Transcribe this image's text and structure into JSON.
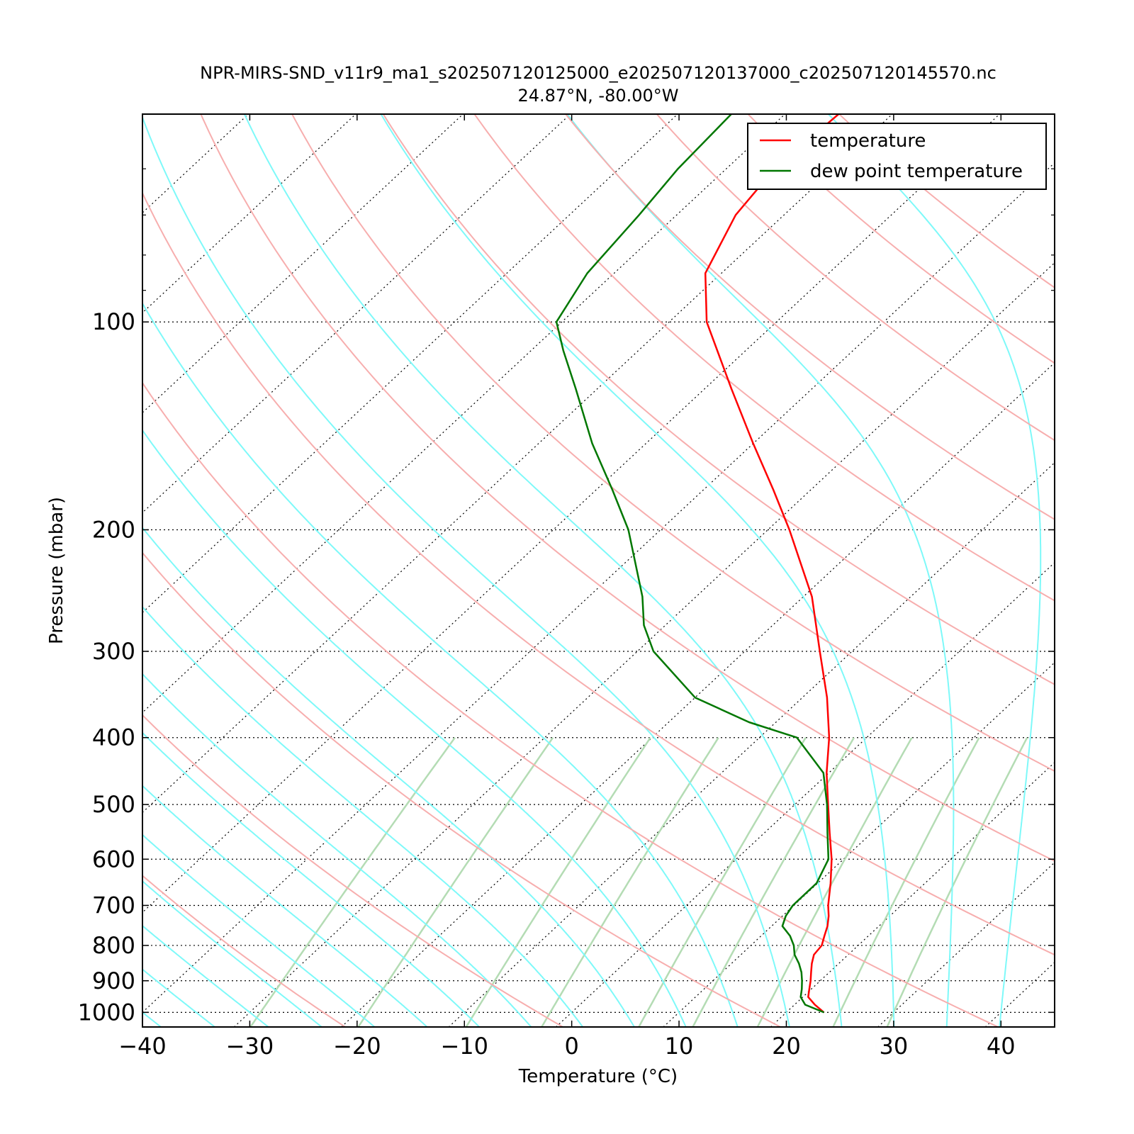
{
  "title": "NPR-MIRS-SND_v11r9_ma1_s202507120125000_e202507120137000_c202507120145570.nc",
  "subtitle": "24.87°N, -80.00°W",
  "colors": {
    "temperature": "#ff0000",
    "dewpoint": "#007700",
    "dry_adiabat": "#f7aeae",
    "moist_adiabat": "#7ef9f9",
    "mixing_ratio": "#b4dcb4",
    "isotherm_grid": "#000000"
  },
  "chart_data": {
    "type": "line",
    "title": "NPR-MIRS-SND_v11r9_ma1_s202507120125000_e202507120137000_c202507120145570.nc",
    "subtitle": "24.87°N, -80.00°W",
    "xlabel": "Temperature (°C)",
    "ylabel": "Pressure (mbar)",
    "xlim": [
      -40,
      45
    ],
    "ylim": [
      1050,
      50
    ],
    "y_scale": "log",
    "x_ticks": [
      "−40",
      "−30",
      "−20",
      "−10",
      "0",
      "10",
      "20",
      "30",
      "40"
    ],
    "x_tick_values": [
      -40,
      -30,
      -20,
      -10,
      0,
      10,
      20,
      30,
      40
    ],
    "y_ticks": [
      "100",
      "200",
      "300",
      "400",
      "500",
      "600",
      "700",
      "800",
      "900",
      "1000"
    ],
    "y_tick_values": [
      100,
      200,
      300,
      400,
      500,
      600,
      700,
      800,
      900,
      1000
    ],
    "grid": "dotted isobars and skewed isotherms",
    "legend_position": "top-right",
    "legend": [
      "temperature",
      "dew point temperature"
    ],
    "series": [
      {
        "name": "temperature",
        "color": "#ff0000",
        "points": [
          [
            1000,
            23.5
          ],
          [
            975,
            21.9
          ],
          [
            950,
            20.5
          ],
          [
            925,
            19.8
          ],
          [
            900,
            19.1
          ],
          [
            875,
            18.3
          ],
          [
            850,
            17.5
          ],
          [
            825,
            16.8
          ],
          [
            800,
            16.6
          ],
          [
            775,
            15.9
          ],
          [
            750,
            15.2
          ],
          [
            725,
            14.3
          ],
          [
            700,
            13.2
          ],
          [
            650,
            11.2
          ],
          [
            600,
            8.9
          ],
          [
            550,
            6.1
          ],
          [
            500,
            3.1
          ],
          [
            450,
            -0.2
          ],
          [
            400,
            -3.5
          ],
          [
            350,
            -7.7
          ],
          [
            300,
            -13.0
          ],
          [
            250,
            -19.2
          ],
          [
            200,
            -28.0
          ],
          [
            175,
            -33.5
          ],
          [
            150,
            -40.0
          ],
          [
            125,
            -47.5
          ],
          [
            100,
            -56.5
          ],
          [
            85,
            -61.5
          ],
          [
            70,
            -64.5
          ],
          [
            60,
            -65.5
          ],
          [
            50,
            -65.0
          ]
        ]
      },
      {
        "name": "dew point temperature",
        "color": "#007700",
        "points": [
          [
            1000,
            23.5
          ],
          [
            975,
            21.0
          ],
          [
            950,
            19.8
          ],
          [
            925,
            19.1
          ],
          [
            900,
            18.3
          ],
          [
            875,
            17.4
          ],
          [
            850,
            16.3
          ],
          [
            825,
            15.0
          ],
          [
            800,
            14.0
          ],
          [
            775,
            12.7
          ],
          [
            750,
            11.0
          ],
          [
            725,
            10.3
          ],
          [
            700,
            9.9
          ],
          [
            650,
            9.9
          ],
          [
            600,
            8.6
          ],
          [
            550,
            5.9
          ],
          [
            500,
            3.0
          ],
          [
            450,
            -0.5
          ],
          [
            400,
            -6.5
          ],
          [
            380,
            -12.5
          ],
          [
            350,
            -20.0
          ],
          [
            300,
            -28.5
          ],
          [
            275,
            -32.0
          ],
          [
            250,
            -35.0
          ],
          [
            200,
            -43.0
          ],
          [
            175,
            -48.5
          ],
          [
            150,
            -55.0
          ],
          [
            125,
            -62.0
          ],
          [
            110,
            -67.0
          ],
          [
            100,
            -70.5
          ],
          [
            85,
            -72.5
          ],
          [
            70,
            -73.5
          ],
          [
            60,
            -74.5
          ],
          [
            50,
            -75.0
          ]
        ]
      }
    ],
    "background_lines": {
      "dry_adiabats_theta_K": [
        210,
        230,
        250,
        270,
        290,
        310,
        330,
        350,
        370,
        390,
        410,
        430,
        450,
        470,
        490
      ],
      "moist_adiabats_start_C_at_1000mbar": [
        -40,
        -35,
        -30,
        -25,
        -20,
        -15,
        -10,
        -5,
        0,
        5,
        10,
        15,
        20,
        25,
        30,
        35,
        40
      ],
      "mixing_ratio_lines_dewpoint_C_at_1000mbar": [
        -29,
        -19,
        -9,
        -2,
        7,
        12,
        18,
        25,
        30
      ]
    }
  }
}
